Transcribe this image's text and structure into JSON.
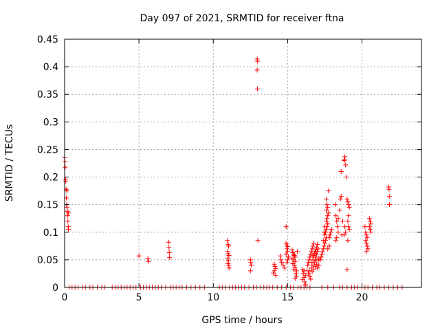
{
  "chart_data": {
    "type": "scatter",
    "title": "Day 097 of 2021, SRMTID for receiver ftna",
    "xlabel": "GPS time / hours",
    "ylabel": "SRMTID / TECUs",
    "xlim": [
      0,
      24
    ],
    "ylim": [
      0,
      0.45
    ],
    "grid": true,
    "x_ticks": [
      0,
      5,
      10,
      15,
      20
    ],
    "x_tick_labels": [
      "0",
      "5",
      "10",
      "15",
      "20"
    ],
    "y_ticks": [
      0,
      0.05,
      0.1,
      0.15,
      0.2,
      0.25,
      0.3,
      0.35,
      0.4,
      0.45
    ],
    "y_tick_labels": [
      "0",
      "0.05",
      "0.1",
      "0.15",
      "0.2",
      "0.25",
      "0.3",
      "0.35",
      "0.4",
      "0.45"
    ],
    "series": [
      {
        "name": "SRMTID",
        "color": "#ff0000",
        "marker": "plus",
        "points": [
          [
            0.0,
            0.235
          ],
          [
            0.02,
            0.228
          ],
          [
            0.04,
            0.218
          ],
          [
            0.06,
            0.196
          ],
          [
            0.08,
            0.192
          ],
          [
            0.1,
            0.178
          ],
          [
            0.12,
            0.162
          ],
          [
            0.14,
            0.15
          ],
          [
            0.16,
            0.145
          ],
          [
            0.18,
            0.138
          ],
          [
            0.2,
            0.13
          ],
          [
            0.22,
            0.12
          ],
          [
            0.24,
            0.11
          ],
          [
            0.26,
            0.105
          ],
          [
            0.15,
            0.175
          ],
          [
            0.25,
            0.135
          ],
          [
            5.0,
            0.057
          ],
          [
            5.6,
            0.052
          ],
          [
            5.65,
            0.047
          ],
          [
            7.0,
            0.082
          ],
          [
            7.02,
            0.072
          ],
          [
            7.04,
            0.063
          ],
          [
            7.06,
            0.054
          ],
          [
            10.95,
            0.085
          ],
          [
            11.0,
            0.078
          ],
          [
            11.03,
            0.075
          ],
          [
            10.97,
            0.065
          ],
          [
            11.0,
            0.061
          ],
          [
            11.05,
            0.058
          ],
          [
            10.98,
            0.052
          ],
          [
            11.02,
            0.048
          ],
          [
            11.0,
            0.043
          ],
          [
            11.04,
            0.04
          ],
          [
            11.06,
            0.035
          ],
          [
            12.5,
            0.05
          ],
          [
            12.52,
            0.045
          ],
          [
            12.55,
            0.04
          ],
          [
            12.5,
            0.03
          ],
          [
            12.95,
            0.414
          ],
          [
            12.98,
            0.41
          ],
          [
            12.95,
            0.394
          ],
          [
            12.97,
            0.36
          ],
          [
            13.0,
            0.085
          ],
          [
            14.1,
            0.042
          ],
          [
            14.15,
            0.038
          ],
          [
            14.2,
            0.034
          ],
          [
            14.1,
            0.03
          ],
          [
            14.05,
            0.026
          ],
          [
            14.2,
            0.022
          ],
          [
            14.5,
            0.057
          ],
          [
            14.55,
            0.05
          ],
          [
            14.6,
            0.045
          ],
          [
            14.7,
            0.04
          ],
          [
            14.8,
            0.035
          ],
          [
            14.9,
            0.11
          ],
          [
            14.9,
            0.08
          ],
          [
            14.95,
            0.077
          ],
          [
            15.0,
            0.074
          ],
          [
            14.95,
            0.07
          ],
          [
            15.0,
            0.065
          ],
          [
            14.9,
            0.06
          ],
          [
            15.05,
            0.055
          ],
          [
            15.0,
            0.05
          ],
          [
            14.95,
            0.045
          ],
          [
            15.3,
            0.068
          ],
          [
            15.35,
            0.063
          ],
          [
            15.4,
            0.06
          ],
          [
            15.45,
            0.058
          ],
          [
            15.5,
            0.055
          ],
          [
            15.4,
            0.05
          ],
          [
            15.5,
            0.047
          ],
          [
            15.35,
            0.043
          ],
          [
            15.45,
            0.04
          ],
          [
            15.5,
            0.036
          ],
          [
            15.4,
            0.032
          ],
          [
            15.6,
            0.03
          ],
          [
            15.55,
            0.025
          ],
          [
            15.6,
            0.02
          ],
          [
            15.5,
            0.016
          ],
          [
            15.3,
            0.052
          ],
          [
            15.65,
            0.065
          ],
          [
            16.0,
            0.032
          ],
          [
            16.1,
            0.03
          ],
          [
            16.05,
            0.025
          ],
          [
            16.2,
            0.022
          ],
          [
            16.1,
            0.018
          ],
          [
            16.0,
            0.014
          ],
          [
            16.15,
            0.01
          ],
          [
            16.2,
            0.005
          ],
          [
            16.3,
            0.03
          ],
          [
            16.35,
            0.04
          ],
          [
            16.4,
            0.045
          ],
          [
            16.45,
            0.05
          ],
          [
            16.5,
            0.055
          ],
          [
            16.55,
            0.06
          ],
          [
            16.6,
            0.065
          ],
          [
            16.65,
            0.07
          ],
          [
            16.7,
            0.075
          ],
          [
            16.75,
            0.08
          ],
          [
            16.4,
            0.025
          ],
          [
            16.5,
            0.02
          ],
          [
            16.55,
            0.015
          ],
          [
            16.6,
            0.035
          ],
          [
            16.7,
            0.04
          ],
          [
            16.8,
            0.045
          ],
          [
            16.85,
            0.05
          ],
          [
            16.9,
            0.055
          ],
          [
            16.95,
            0.06
          ],
          [
            17.0,
            0.065
          ],
          [
            17.05,
            0.07
          ],
          [
            16.45,
            0.03
          ],
          [
            16.65,
            0.028
          ],
          [
            16.75,
            0.032
          ],
          [
            16.85,
            0.038
          ],
          [
            16.95,
            0.042
          ],
          [
            17.05,
            0.048
          ],
          [
            17.1,
            0.052
          ],
          [
            16.7,
            0.055
          ],
          [
            16.8,
            0.062
          ],
          [
            16.9,
            0.068
          ],
          [
            17.0,
            0.035
          ],
          [
            17.1,
            0.04
          ],
          [
            16.6,
            0.045
          ],
          [
            16.7,
            0.05
          ],
          [
            16.75,
            0.058
          ],
          [
            16.85,
            0.065
          ],
          [
            16.95,
            0.072
          ],
          [
            17.0,
            0.078
          ],
          [
            17.2,
            0.05
          ],
          [
            17.25,
            0.055
          ],
          [
            17.3,
            0.06
          ],
          [
            17.35,
            0.065
          ],
          [
            17.4,
            0.07
          ],
          [
            17.45,
            0.075
          ],
          [
            17.5,
            0.08
          ],
          [
            17.55,
            0.085
          ],
          [
            17.6,
            0.09
          ],
          [
            17.5,
            0.095
          ],
          [
            17.55,
            0.1
          ],
          [
            17.6,
            0.105
          ],
          [
            17.65,
            0.11
          ],
          [
            17.7,
            0.115
          ],
          [
            17.6,
            0.12
          ],
          [
            17.65,
            0.125
          ],
          [
            17.7,
            0.13
          ],
          [
            17.75,
            0.135
          ],
          [
            17.6,
            0.14
          ],
          [
            17.7,
            0.145
          ],
          [
            17.65,
            0.15
          ],
          [
            17.6,
            0.16
          ],
          [
            17.75,
            0.175
          ],
          [
            17.5,
            0.11
          ],
          [
            17.45,
            0.1
          ],
          [
            17.4,
            0.085
          ],
          [
            17.8,
            0.09
          ],
          [
            17.85,
            0.095
          ],
          [
            17.9,
            0.1
          ],
          [
            17.95,
            0.105
          ],
          [
            17.8,
            0.075
          ],
          [
            17.7,
            0.07
          ],
          [
            18.2,
            0.15
          ],
          [
            18.25,
            0.13
          ],
          [
            18.3,
            0.12
          ],
          [
            18.35,
            0.11
          ],
          [
            18.4,
            0.1
          ],
          [
            18.3,
            0.09
          ],
          [
            18.25,
            0.085
          ],
          [
            18.4,
            0.125
          ],
          [
            18.5,
            0.14
          ],
          [
            18.55,
            0.16
          ],
          [
            18.6,
            0.21
          ],
          [
            18.6,
            0.165
          ],
          [
            18.65,
            0.095
          ],
          [
            18.7,
            0.12
          ],
          [
            18.8,
            0.23
          ],
          [
            18.85,
            0.237
          ],
          [
            18.82,
            0.232
          ],
          [
            18.9,
            0.222
          ],
          [
            18.95,
            0.2
          ],
          [
            18.85,
            0.11
          ],
          [
            18.9,
            0.1
          ],
          [
            18.8,
            0.095
          ],
          [
            19.0,
            0.16
          ],
          [
            19.05,
            0.155
          ],
          [
            19.1,
            0.15
          ],
          [
            19.15,
            0.145
          ],
          [
            19.1,
            0.13
          ],
          [
            19.05,
            0.12
          ],
          [
            19.1,
            0.11
          ],
          [
            19.15,
            0.105
          ],
          [
            19.05,
            0.085
          ],
          [
            19.0,
            0.032
          ],
          [
            20.2,
            0.11
          ],
          [
            20.25,
            0.1
          ],
          [
            20.3,
            0.095
          ],
          [
            20.35,
            0.09
          ],
          [
            20.25,
            0.085
          ],
          [
            20.3,
            0.08
          ],
          [
            20.35,
            0.075
          ],
          [
            20.4,
            0.07
          ],
          [
            20.3,
            0.065
          ],
          [
            20.5,
            0.125
          ],
          [
            20.55,
            0.12
          ],
          [
            20.6,
            0.115
          ],
          [
            20.5,
            0.11
          ],
          [
            20.55,
            0.105
          ],
          [
            20.6,
            0.1
          ],
          [
            21.8,
            0.182
          ],
          [
            21.82,
            0.178
          ],
          [
            21.84,
            0.165
          ],
          [
            21.85,
            0.15
          ],
          [
            0.3,
            0
          ],
          [
            0.5,
            0
          ],
          [
            0.7,
            0
          ],
          [
            0.9,
            0
          ],
          [
            1.2,
            0
          ],
          [
            1.4,
            0
          ],
          [
            1.7,
            0
          ],
          [
            1.9,
            0
          ],
          [
            2.2,
            0
          ],
          [
            2.5,
            0
          ],
          [
            2.7,
            0
          ],
          [
            3.2,
            0
          ],
          [
            3.4,
            0
          ],
          [
            3.6,
            0
          ],
          [
            3.8,
            0
          ],
          [
            4.0,
            0
          ],
          [
            4.2,
            0
          ],
          [
            4.4,
            0
          ],
          [
            4.6,
            0
          ],
          [
            4.8,
            0
          ],
          [
            5.1,
            0
          ],
          [
            5.3,
            0
          ],
          [
            5.5,
            0
          ],
          [
            5.7,
            0
          ],
          [
            5.9,
            0
          ],
          [
            6.1,
            0
          ],
          [
            6.3,
            0
          ],
          [
            6.5,
            0
          ],
          [
            6.8,
            0
          ],
          [
            7.1,
            0
          ],
          [
            7.3,
            0
          ],
          [
            7.5,
            0
          ],
          [
            7.7,
            0
          ],
          [
            7.9,
            0
          ],
          [
            8.2,
            0
          ],
          [
            8.5,
            0
          ],
          [
            8.8,
            0
          ],
          [
            9.1,
            0
          ],
          [
            9.4,
            0
          ],
          [
            10.4,
            0
          ],
          [
            10.6,
            0
          ],
          [
            10.8,
            0
          ],
          [
            11.1,
            0
          ],
          [
            11.3,
            0
          ],
          [
            11.5,
            0
          ],
          [
            11.7,
            0
          ],
          [
            11.9,
            0
          ],
          [
            12.1,
            0
          ],
          [
            12.4,
            0
          ],
          [
            12.7,
            0
          ],
          [
            12.9,
            0
          ],
          [
            13.2,
            0
          ],
          [
            13.4,
            0
          ],
          [
            13.6,
            0
          ],
          [
            13.8,
            0
          ],
          [
            14.0,
            0
          ],
          [
            14.3,
            0
          ],
          [
            14.6,
            0
          ],
          [
            14.9,
            0
          ],
          [
            15.2,
            0
          ],
          [
            15.4,
            0
          ],
          [
            15.7,
            0
          ],
          [
            15.9,
            0
          ],
          [
            16.1,
            0
          ],
          [
            16.3,
            0
          ],
          [
            16.5,
            0
          ],
          [
            17.3,
            0
          ],
          [
            17.7,
            0
          ],
          [
            18.1,
            0
          ],
          [
            18.5,
            0
          ],
          [
            18.7,
            0
          ],
          [
            19.0,
            0
          ],
          [
            19.3,
            0
          ],
          [
            19.5,
            0
          ],
          [
            19.7,
            0
          ],
          [
            20.0,
            0
          ],
          [
            20.2,
            0
          ],
          [
            20.4,
            0
          ],
          [
            20.7,
            0
          ],
          [
            21.0,
            0
          ],
          [
            21.2,
            0
          ],
          [
            21.5,
            0
          ],
          [
            21.8,
            0
          ],
          [
            22.1,
            0
          ],
          [
            22.4,
            0
          ],
          [
            22.7,
            0
          ]
        ]
      }
    ]
  }
}
